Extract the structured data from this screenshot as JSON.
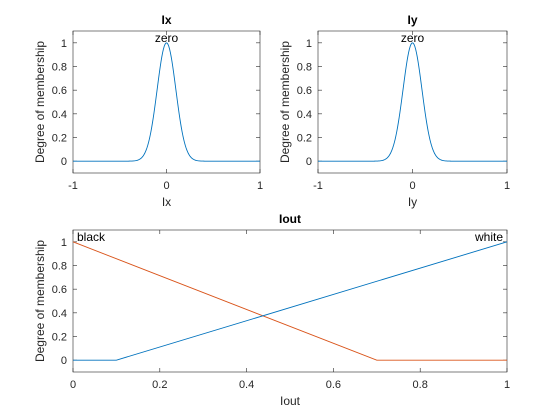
{
  "chart_data": [
    {
      "type": "line",
      "title": "Ix",
      "xlabel": "Ix",
      "ylabel": "Degree of membership",
      "xlim": [
        -1,
        1
      ],
      "ylim": [
        -0.1,
        1.1
      ],
      "xticks": [
        "-1",
        "0",
        "1"
      ],
      "yticks": [
        "0",
        "0.2",
        "0.4",
        "0.6",
        "0.8",
        "1"
      ],
      "grid": false,
      "series": [
        {
          "name": "zero",
          "shape": "gaussian",
          "mean": 0,
          "sigma": 0.1,
          "color": "#0072BD"
        }
      ]
    },
    {
      "type": "line",
      "title": "Iy",
      "xlabel": "Iy",
      "ylabel": "Degree of membership",
      "xlim": [
        -1,
        1
      ],
      "ylim": [
        -0.1,
        1.1
      ],
      "xticks": [
        "-1",
        "0",
        "1"
      ],
      "yticks": [
        "0",
        "0.2",
        "0.4",
        "0.6",
        "0.8",
        "1"
      ],
      "grid": false,
      "series": [
        {
          "name": "zero",
          "shape": "gaussian",
          "mean": 0,
          "sigma": 0.1,
          "color": "#0072BD"
        }
      ]
    },
    {
      "type": "line",
      "title": "Iout",
      "xlabel": "Iout",
      "ylabel": "Degree of membership",
      "xlim": [
        0,
        1
      ],
      "ylim": [
        -0.1,
        1.1
      ],
      "xticks": [
        "0",
        "0.2",
        "0.4",
        "0.6",
        "0.8",
        "1"
      ],
      "yticks": [
        "0",
        "0.2",
        "0.4",
        "0.6",
        "0.8",
        "1"
      ],
      "grid": false,
      "series": [
        {
          "name": "black",
          "x": [
            0,
            0.7,
            1
          ],
          "y": [
            1,
            0,
            0
          ],
          "color": "#D95319",
          "label_anchor": "start"
        },
        {
          "name": "white",
          "x": [
            0,
            0.1,
            1
          ],
          "y": [
            0,
            0,
            1
          ],
          "color": "#0072BD",
          "label_anchor": "end"
        }
      ]
    }
  ]
}
